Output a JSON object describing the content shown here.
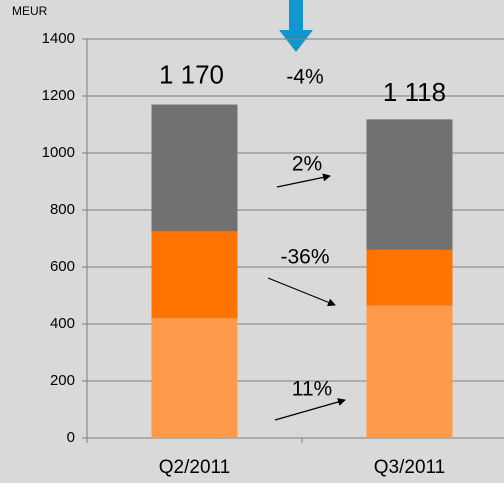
{
  "chart_data": {
    "type": "stacked_bar",
    "y_label": "MEUR",
    "categories": [
      "Q2/2011",
      "Q3/2011"
    ],
    "series": [
      {
        "color": "#ff9a4a",
        "values": [
          420,
          465
        ]
      },
      {
        "color": "#ff7300",
        "values": [
          305,
          195
        ]
      },
      {
        "color": "#717171",
        "values": [
          445,
          458
        ]
      }
    ],
    "totals": [
      1170,
      1118
    ],
    "total_labels": [
      "1 170",
      "1 118"
    ],
    "annotations": [
      "-4%",
      "2%",
      "-36%",
      "11%"
    ],
    "ylim": [
      0,
      1400
    ],
    "yticks": [
      0,
      200,
      400,
      600,
      800,
      1000,
      1200,
      1400
    ],
    "grid": true
  }
}
